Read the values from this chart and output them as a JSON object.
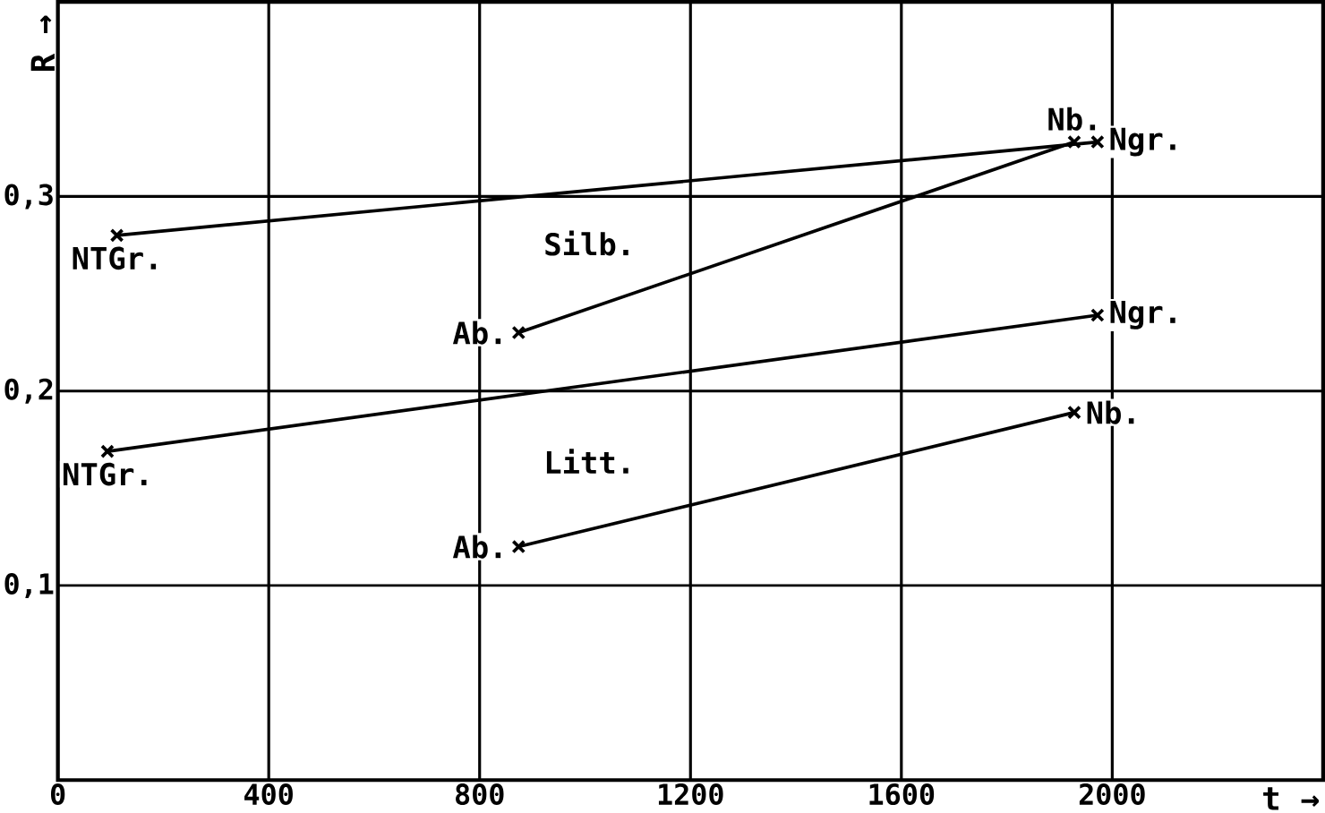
{
  "chart_data": {
    "type": "line",
    "xlabel": "t →",
    "ylabel": "R →",
    "xlim": [
      0,
      2400
    ],
    "ylim": [
      0,
      0.4
    ],
    "xticks": [
      {
        "value": 0,
        "label": "0"
      },
      400,
      800,
      1200,
      1600,
      2000
    ],
    "yticks": [
      {
        "value": 0.1,
        "label": "0,1"
      },
      {
        "value": 0.2,
        "label": "0,2"
      },
      {
        "value": 0.3,
        "label": "0,3"
      }
    ],
    "grid": true,
    "marker": "cross",
    "line_style": "solid",
    "series": [
      {
        "color": "#000000",
        "x": [
          112,
          1972
        ],
        "values": [
          0.28,
          0.328
        ]
      },
      {
        "color": "#000000",
        "x": [
          874,
          1928
        ],
        "values": [
          0.23,
          0.328
        ]
      },
      {
        "color": "#000000",
        "x": [
          94,
          1972
        ],
        "values": [
          0.169,
          0.239
        ]
      },
      {
        "color": "#000000",
        "x": [
          874,
          1928
        ],
        "values": [
          0.12,
          0.189
        ]
      }
    ],
    "annotations": [
      {
        "text": "NTGr.",
        "x": 112,
        "y": 0.28
      },
      {
        "text": "Ab.",
        "x": 874,
        "y": 0.23
      },
      {
        "text": "Nb.",
        "x": 1928,
        "y": 0.328
      },
      {
        "text": "Ngr.",
        "x": 1972,
        "y": 0.328
      },
      "Silb.",
      {
        "text": "Ngr.",
        "x": 1972,
        "y": 0.239
      },
      {
        "text": "NTGr.",
        "x": 94,
        "y": 0.169
      },
      "Litt.",
      {
        "text": "Ab.",
        "x": 874,
        "y": 0.12
      },
      {
        "text": "Nb.",
        "x": 1928,
        "y": 0.189
      }
    ]
  }
}
